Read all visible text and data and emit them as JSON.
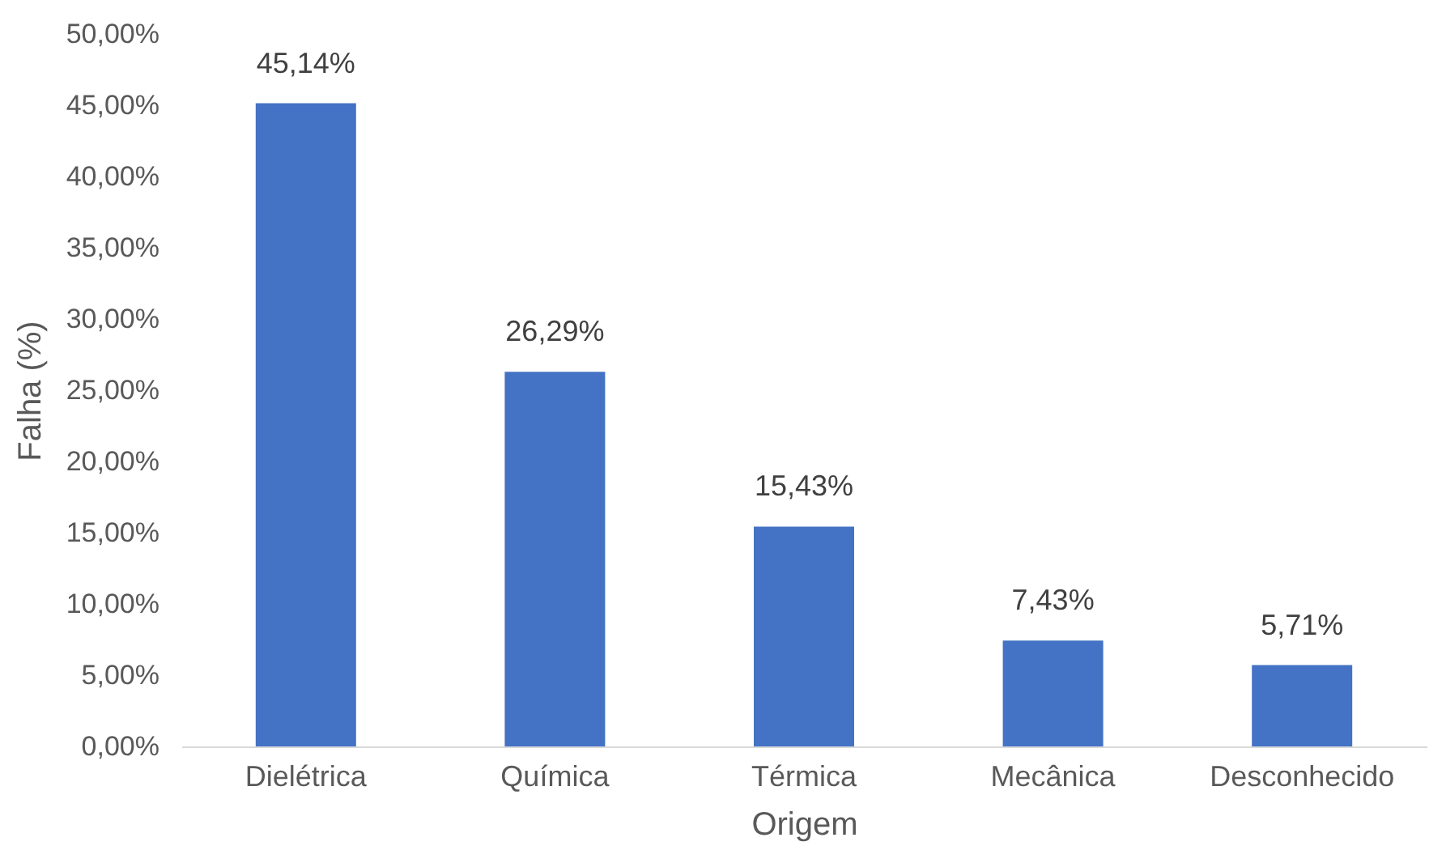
{
  "chart_data": {
    "type": "bar",
    "xlabel": "Origem",
    "ylabel": "Falha (%)",
    "categories": [
      "Dielétrica",
      "Química",
      "Térmica",
      "Mecânica",
      "Desconhecido"
    ],
    "values": [
      45.14,
      26.29,
      15.43,
      7.43,
      5.71
    ],
    "value_labels": [
      "45,14%",
      "26,29%",
      "15,43%",
      "7,43%",
      "5,71%"
    ],
    "color": "#4472c4",
    "ylim": [
      0,
      50
    ],
    "yticks": [
      {
        "value": 0,
        "label": "0,00%"
      },
      {
        "value": 5,
        "label": "5,00%"
      },
      {
        "value": 10,
        "label": "10,00%"
      },
      {
        "value": 15,
        "label": "15,00%"
      },
      {
        "value": 20,
        "label": "20,00%"
      },
      {
        "value": 25,
        "label": "25,00%"
      },
      {
        "value": 30,
        "label": "30,00%"
      },
      {
        "value": 35,
        "label": "35,00%"
      },
      {
        "value": 40,
        "label": "40,00%"
      },
      {
        "value": 45,
        "label": "45,00%"
      },
      {
        "value": 50,
        "label": "50,00%"
      }
    ]
  }
}
